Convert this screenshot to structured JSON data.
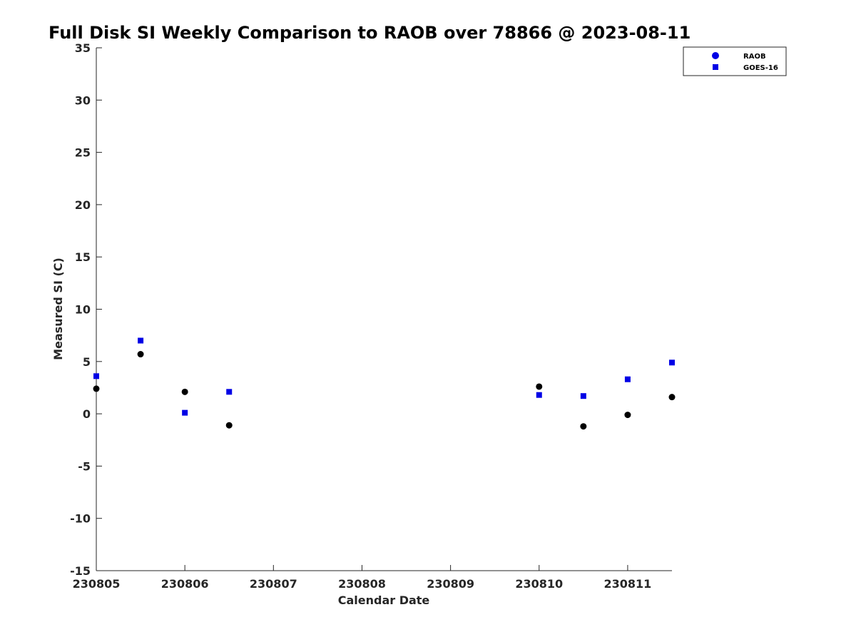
{
  "chart_data": {
    "type": "scatter",
    "title": "Full Disk SI Weekly Comparison to RAOB over 78866 @ 2023-08-11",
    "xlabel": "Calendar Date",
    "ylabel": "Measured SI (C)",
    "x_ticks": [
      "230805",
      "230806",
      "230807",
      "230808",
      "230809",
      "230810",
      "230811"
    ],
    "y_ticks": [
      "35",
      "30",
      "25",
      "20",
      "15",
      "10",
      "5",
      "0",
      "-5",
      "-10",
      "-15"
    ],
    "xlim": [
      "230805",
      "230811.5"
    ],
    "ylim": [
      -15,
      35
    ],
    "grid": false,
    "legend_position": "top-right",
    "colors": {
      "RAOB": "#000000",
      "GOES-16": "#0000e6",
      "legend_RAOB": "#0000e6"
    },
    "x": [
      "230805 00Z",
      "230805 12Z",
      "230806 00Z",
      "230806 12Z",
      "230810 00Z",
      "230810 12Z",
      "230811 00Z",
      "230811 12Z"
    ],
    "series": [
      {
        "name": "RAOB",
        "marker": "circle",
        "values": [
          2.4,
          5.7,
          2.1,
          -1.1,
          2.6,
          -1.2,
          -0.1,
          1.6
        ]
      },
      {
        "name": "GOES-16",
        "marker": "square",
        "values": [
          3.6,
          7.0,
          0.1,
          2.1,
          1.8,
          1.7,
          3.3,
          4.9
        ]
      }
    ]
  }
}
